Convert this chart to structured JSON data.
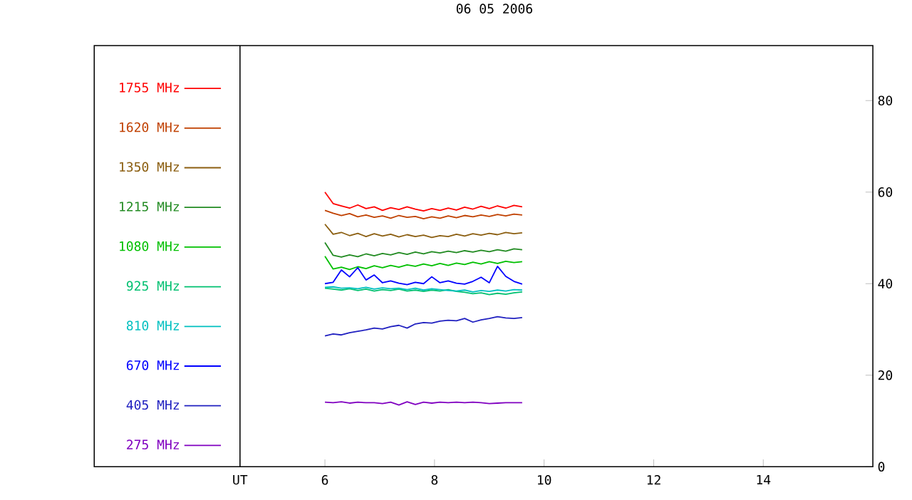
{
  "chart_data": {
    "type": "line",
    "title": "06 05 2006",
    "x": [
      6.0,
      6.15,
      6.3,
      6.45,
      6.6,
      6.75,
      6.9,
      7.05,
      7.2,
      7.35,
      7.5,
      7.65,
      7.8,
      7.95,
      8.1,
      8.25,
      8.4,
      8.55,
      8.7,
      8.85,
      9.0,
      9.15,
      9.3,
      9.45,
      9.6
    ],
    "xlim": [
      1.79,
      16
    ],
    "ref_lines": [
      {
        "axis": "x",
        "value": 4.45,
        "color": "#000000"
      }
    ],
    "xticks": [
      {
        "value": 4.45,
        "label": "UT"
      },
      6,
      8,
      10,
      12,
      14
    ],
    "ylim": [
      0,
      92
    ],
    "yticks": [
      0,
      20,
      40,
      60,
      80
    ],
    "legend": "left",
    "grid": false,
    "line_style": "solid",
    "series": [
      {
        "name": "1755 MHz",
        "color": "#ff0000",
        "values": [
          60,
          57.5,
          57,
          56.5,
          57.2,
          56.4,
          56.8,
          56,
          56.6,
          56.2,
          56.8,
          56.3,
          55.9,
          56.4,
          56,
          56.5,
          56.1,
          56.7,
          56.3,
          56.9,
          56.4,
          57,
          56.5,
          57.1,
          56.8
        ]
      },
      {
        "name": "1620 MHz",
        "color": "#c04000",
        "values": [
          56,
          55.4,
          54.9,
          55.3,
          54.6,
          55,
          54.5,
          54.8,
          54.3,
          54.9,
          54.5,
          54.7,
          54.2,
          54.6,
          54.3,
          54.8,
          54.4,
          54.9,
          54.6,
          55,
          54.7,
          55.1,
          54.8,
          55.2,
          55
        ]
      },
      {
        "name": "1350 MHz",
        "color": "#8b5e10",
        "values": [
          53,
          50.8,
          51.2,
          50.5,
          51,
          50.3,
          50.9,
          50.4,
          50.8,
          50.2,
          50.7,
          50.3,
          50.6,
          50.1,
          50.5,
          50.3,
          50.8,
          50.4,
          50.9,
          50.6,
          51,
          50.7,
          51.2,
          50.9,
          51.1
        ]
      },
      {
        "name": "1215 MHz",
        "color": "#228b22",
        "values": [
          49,
          46.2,
          45.8,
          46.3,
          45.9,
          46.5,
          46.1,
          46.6,
          46.3,
          46.8,
          46.4,
          46.9,
          46.5,
          47,
          46.7,
          47.1,
          46.8,
          47.2,
          46.9,
          47.3,
          47,
          47.4,
          47.1,
          47.6,
          47.4
        ]
      },
      {
        "name": "1080 MHz",
        "color": "#00c000",
        "values": [
          46,
          43.2,
          43.6,
          43.1,
          43.7,
          43.3,
          43.9,
          43.5,
          44,
          43.6,
          44.1,
          43.8,
          44.3,
          43.9,
          44.4,
          44,
          44.5,
          44.2,
          44.7,
          44.3,
          44.8,
          44.4,
          44.9,
          44.6,
          44.8
        ]
      },
      {
        "name": "925 MHz",
        "color": "#00c070",
        "values": [
          39,
          38.8,
          38.6,
          38.9,
          38.5,
          38.8,
          38.4,
          38.7,
          38.5,
          38.8,
          38.4,
          38.6,
          38.3,
          38.6,
          38.4,
          38.7,
          38.3,
          38.1,
          37.8,
          38.0,
          37.6,
          37.9,
          37.7,
          38,
          38.2
        ]
      },
      {
        "name": "810 MHz",
        "color": "#00c0c0",
        "values": [
          39.2,
          39.3,
          39,
          39.1,
          38.9,
          39.2,
          38.8,
          39.1,
          38.9,
          39.0,
          38.7,
          39,
          38.6,
          38.9,
          38.7,
          38.5,
          38.4,
          38.6,
          38.2,
          38.5,
          38.3,
          38.6,
          38.4,
          38.7,
          38.6
        ]
      },
      {
        "name": "670 MHz",
        "color": "#0000ff",
        "values": [
          40,
          40.3,
          43,
          41.5,
          43.5,
          40.8,
          41.9,
          40.2,
          40.6,
          40.1,
          39.8,
          40.3,
          40,
          41.5,
          40.2,
          40.6,
          40.1,
          39.9,
          40.5,
          41.4,
          40.2,
          43.8,
          41.6,
          40.5,
          39.9
        ]
      },
      {
        "name": "405 MHz",
        "color": "#2020c0",
        "values": [
          28.6,
          29,
          28.8,
          29.3,
          29.6,
          29.9,
          30.3,
          30.1,
          30.6,
          30.9,
          30.3,
          31.2,
          31.5,
          31.4,
          31.8,
          32,
          31.9,
          32.4,
          31.6,
          32.1,
          32.4,
          32.8,
          32.5,
          32.4,
          32.6
        ]
      },
      {
        "name": "275 MHz",
        "color": "#8000c0",
        "values": [
          14.1,
          14,
          14.2,
          13.9,
          14.1,
          14,
          14,
          13.8,
          14.1,
          13.5,
          14.2,
          13.6,
          14.1,
          13.9,
          14.1,
          14,
          14.1,
          14,
          14.1,
          14,
          13.8,
          13.9,
          14,
          14,
          14
        ]
      }
    ]
  }
}
